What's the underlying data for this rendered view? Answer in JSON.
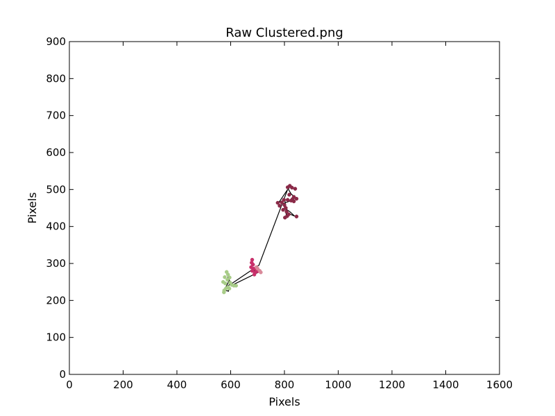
{
  "chart_data": {
    "type": "scatter",
    "title": "Raw Clustered.png",
    "xlabel": "Pixels",
    "ylabel": "Pixels",
    "xlim": [
      0,
      1600
    ],
    "ylim": [
      0,
      900
    ],
    "x_ticks": [
      0,
      200,
      400,
      600,
      800,
      1000,
      1200,
      1400,
      1600
    ],
    "y_ticks": [
      0,
      100,
      200,
      300,
      400,
      500,
      600,
      700,
      800,
      900
    ],
    "x_tick_labels": [
      "0",
      "200",
      "400",
      "600",
      "800",
      "1000",
      "1200",
      "1400",
      "1600"
    ],
    "y_tick_labels": [
      "0",
      "100",
      "200",
      "300",
      "400",
      "500",
      "600",
      "700",
      "800",
      "900"
    ],
    "grid": false,
    "path": {
      "color": "#000000",
      "points": [
        [
          820,
          510
        ],
        [
          815,
          500
        ],
        [
          825,
          488
        ],
        [
          840,
          478
        ],
        [
          825,
          470
        ],
        [
          810,
          466
        ],
        [
          795,
          462
        ],
        [
          800,
          452
        ],
        [
          810,
          445
        ],
        [
          820,
          440
        ],
        [
          838,
          428
        ],
        [
          815,
          435
        ],
        [
          805,
          442
        ],
        [
          808,
          425
        ],
        [
          802,
          470
        ],
        [
          780,
          466
        ],
        [
          812,
          500
        ],
        [
          705,
          295
        ],
        [
          690,
          290
        ],
        [
          680,
          285
        ],
        [
          690,
          280
        ],
        [
          700,
          275
        ],
        [
          610,
          243
        ],
        [
          600,
          248
        ],
        [
          588,
          264
        ],
        [
          595,
          255
        ],
        [
          585,
          240
        ],
        [
          580,
          233
        ],
        [
          575,
          228
        ],
        [
          592,
          225
        ],
        [
          590,
          240
        ],
        [
          605,
          246
        ],
        [
          690,
          288
        ]
      ]
    },
    "series": [
      {
        "color": "#8a2a48",
        "points": [
          [
            820,
            510
          ],
          [
            828,
            505
          ],
          [
            812,
            506
          ],
          [
            840,
            502
          ],
          [
            835,
            480
          ],
          [
            845,
            475
          ],
          [
            825,
            470
          ],
          [
            835,
            468
          ],
          [
            812,
            472
          ],
          [
            798,
            472
          ],
          [
            790,
            465
          ],
          [
            775,
            464
          ],
          [
            782,
            456
          ],
          [
            800,
            458
          ],
          [
            805,
            450
          ],
          [
            795,
            445
          ],
          [
            808,
            440
          ],
          [
            816,
            433
          ],
          [
            810,
            428
          ],
          [
            802,
            424
          ],
          [
            845,
            427
          ],
          [
            830,
            474
          ],
          [
            818,
            486
          ]
        ]
      },
      {
        "color": "#c8306a",
        "points": [
          [
            680,
            310
          ],
          [
            678,
            302
          ],
          [
            683,
            297
          ],
          [
            676,
            290
          ],
          [
            686,
            286
          ],
          [
            680,
            280
          ],
          [
            694,
            284
          ],
          [
            700,
            279
          ],
          [
            690,
            275
          ],
          [
            688,
            270
          ]
        ]
      },
      {
        "color": "#d98a9a",
        "points": [
          [
            700,
            286
          ],
          [
            708,
            280
          ],
          [
            712,
            276
          ],
          [
            696,
            290
          ]
        ]
      },
      {
        "color": "#a8cc88",
        "points": [
          [
            585,
            277
          ],
          [
            590,
            270
          ],
          [
            578,
            263
          ],
          [
            596,
            262
          ],
          [
            588,
            256
          ],
          [
            572,
            250
          ],
          [
            580,
            246
          ],
          [
            598,
            248
          ],
          [
            604,
            242
          ],
          [
            612,
            240
          ],
          [
            590,
            236
          ],
          [
            582,
            232
          ],
          [
            576,
            227
          ],
          [
            575,
            222
          ],
          [
            595,
            232
          ],
          [
            620,
            240
          ]
        ]
      }
    ]
  }
}
